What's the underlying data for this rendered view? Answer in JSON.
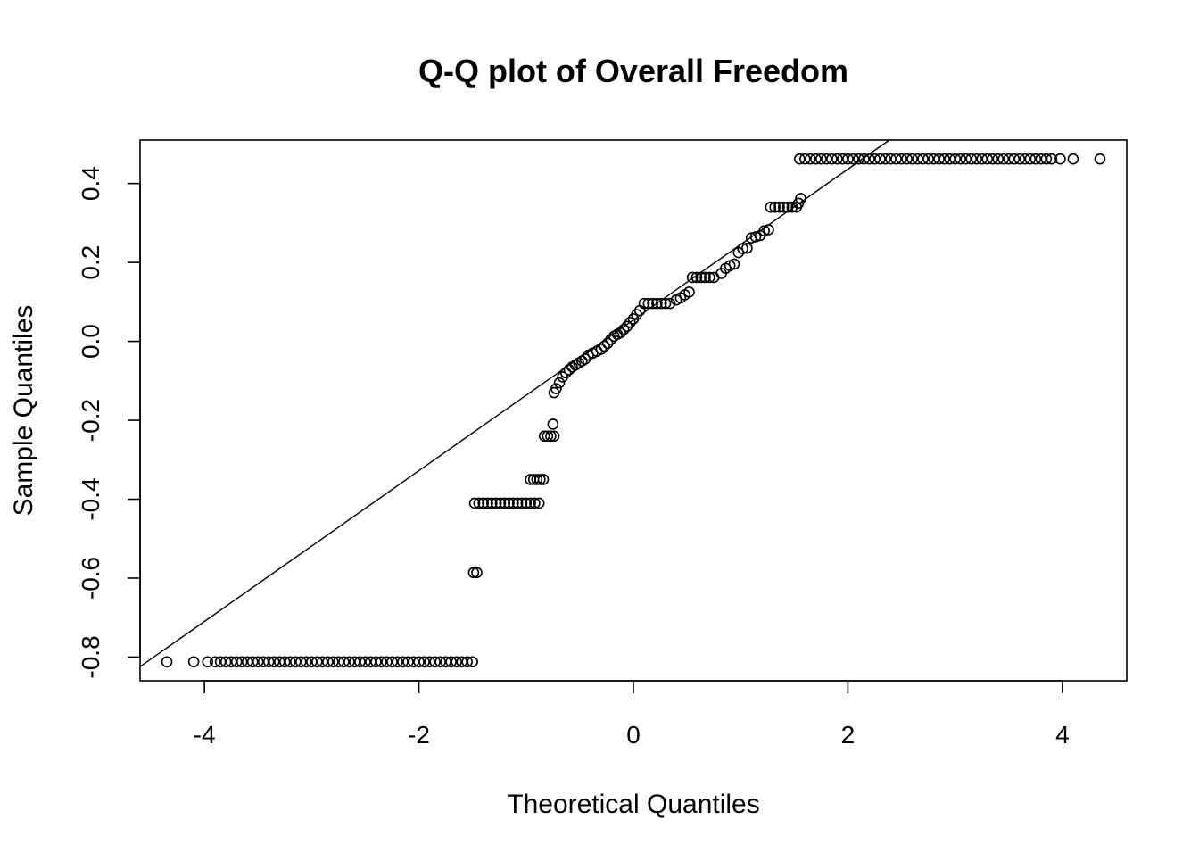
{
  "chart_data": {
    "type": "scatter",
    "title": "Q-Q plot of Overall Freedom",
    "xlabel": "Theoretical Quantiles",
    "ylabel": "Sample Quantiles",
    "xlim": [
      -4.6,
      4.6
    ],
    "ylim": [
      -0.86,
      0.51
    ],
    "x_ticks": [
      -4,
      -2,
      0,
      2,
      4
    ],
    "x_tick_labels": [
      "-4",
      "-2",
      "0",
      "2",
      "4"
    ],
    "y_ticks": [
      -0.8,
      -0.6,
      -0.4,
      -0.2,
      0.0,
      0.2,
      0.4
    ],
    "y_tick_labels": [
      "-0.8",
      "-0.6",
      "-0.4",
      "-0.2",
      "0.0",
      "0.2",
      "0.4"
    ],
    "grid": false,
    "legend": "none",
    "marker": "open-circle",
    "colors": {
      "points": "#000000",
      "line": "#000000",
      "frame": "#000000",
      "background": "#ffffff"
    },
    "reference_line": {
      "slope": 0.191,
      "intercept": 0.0543
    },
    "sample_value_runs": [
      {
        "value": -0.812,
        "x_from": -3.8,
        "x_to": -1.5,
        "step": 0.05
      },
      {
        "value": -0.41,
        "x_from": -1.48,
        "x_to": -0.88,
        "step": 0.04
      },
      {
        "value": -0.35,
        "x_from": -0.96,
        "x_to": -0.82,
        "step": 0.03
      },
      {
        "value": -0.24,
        "x_from": -0.83,
        "x_to": -0.73,
        "step": 0.03
      },
      {
        "value": 0.096,
        "x_from": 0.1,
        "x_to": 0.35,
        "step": 0.04
      },
      {
        "value": 0.162,
        "x_from": 0.55,
        "x_to": 0.78,
        "step": 0.04
      },
      {
        "value": 0.34,
        "x_from": 1.28,
        "x_to": 1.52,
        "step": 0.04
      },
      {
        "value": 0.462,
        "x_from": 1.55,
        "x_to": 3.7,
        "step": 0.05
      }
    ],
    "sample_points": [
      {
        "x": -4.35,
        "y": -0.812
      },
      {
        "x": -4.1,
        "y": -0.812
      },
      {
        "x": -3.97,
        "y": -0.812
      },
      {
        "x": -3.9,
        "y": -0.812
      },
      {
        "x": -3.85,
        "y": -0.812
      },
      {
        "x": -1.49,
        "y": -0.586
      },
      {
        "x": -1.46,
        "y": -0.586
      },
      {
        "x": -0.75,
        "y": -0.21
      },
      {
        "x": -0.74,
        "y": -0.13
      },
      {
        "x": -0.72,
        "y": -0.12
      },
      {
        "x": -0.69,
        "y": -0.105
      },
      {
        "x": -0.66,
        "y": -0.09
      },
      {
        "x": -0.63,
        "y": -0.08
      },
      {
        "x": -0.6,
        "y": -0.072
      },
      {
        "x": -0.57,
        "y": -0.065
      },
      {
        "x": -0.54,
        "y": -0.06
      },
      {
        "x": -0.51,
        "y": -0.055
      },
      {
        "x": -0.48,
        "y": -0.05
      },
      {
        "x": -0.45,
        "y": -0.045
      },
      {
        "x": -0.42,
        "y": -0.035
      },
      {
        "x": -0.38,
        "y": -0.03
      },
      {
        "x": -0.34,
        "y": -0.025
      },
      {
        "x": -0.3,
        "y": -0.02
      },
      {
        "x": -0.27,
        "y": -0.012
      },
      {
        "x": -0.24,
        "y": -0.005
      },
      {
        "x": -0.21,
        "y": 0.005
      },
      {
        "x": -0.18,
        "y": 0.013
      },
      {
        "x": -0.15,
        "y": 0.018
      },
      {
        "x": -0.12,
        "y": 0.022
      },
      {
        "x": -0.09,
        "y": 0.03
      },
      {
        "x": -0.06,
        "y": 0.038
      },
      {
        "x": -0.03,
        "y": 0.048
      },
      {
        "x": 0.0,
        "y": 0.057
      },
      {
        "x": 0.03,
        "y": 0.068
      },
      {
        "x": 0.06,
        "y": 0.078
      },
      {
        "x": 0.4,
        "y": 0.105
      },
      {
        "x": 0.44,
        "y": 0.11
      },
      {
        "x": 0.48,
        "y": 0.118
      },
      {
        "x": 0.52,
        "y": 0.125
      },
      {
        "x": 0.82,
        "y": 0.172
      },
      {
        "x": 0.86,
        "y": 0.185
      },
      {
        "x": 0.9,
        "y": 0.192
      },
      {
        "x": 0.94,
        "y": 0.196
      },
      {
        "x": 0.98,
        "y": 0.225
      },
      {
        "x": 1.02,
        "y": 0.235
      },
      {
        "x": 1.06,
        "y": 0.236
      },
      {
        "x": 1.1,
        "y": 0.262
      },
      {
        "x": 1.14,
        "y": 0.265
      },
      {
        "x": 1.18,
        "y": 0.268
      },
      {
        "x": 1.22,
        "y": 0.28
      },
      {
        "x": 1.26,
        "y": 0.283
      },
      {
        "x": 1.54,
        "y": 0.35
      },
      {
        "x": 1.56,
        "y": 0.362
      },
      {
        "x": 3.75,
        "y": 0.462
      },
      {
        "x": 3.8,
        "y": 0.462
      },
      {
        "x": 3.85,
        "y": 0.462
      },
      {
        "x": 3.9,
        "y": 0.462
      },
      {
        "x": 3.98,
        "y": 0.462
      },
      {
        "x": 4.1,
        "y": 0.462
      },
      {
        "x": 4.35,
        "y": 0.462
      }
    ]
  }
}
